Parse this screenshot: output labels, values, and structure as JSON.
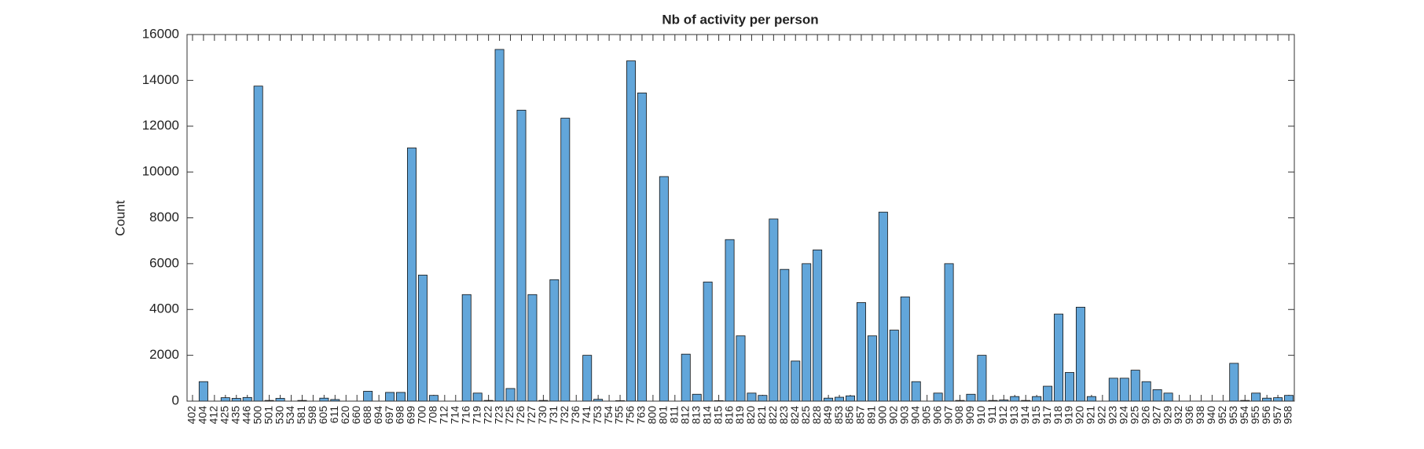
{
  "chart_data": {
    "type": "bar",
    "title": "Nb of activity per person",
    "ylabel": "Count",
    "categories": [
      "402",
      "404",
      "412",
      "425",
      "435",
      "446",
      "500",
      "501",
      "530",
      "534",
      "581",
      "598",
      "605",
      "611",
      "620",
      "660",
      "688",
      "694",
      "697",
      "698",
      "699",
      "700",
      "708",
      "712",
      "714",
      "716",
      "719",
      "722",
      "723",
      "725",
      "726",
      "727",
      "730",
      "731",
      "732",
      "736",
      "741",
      "753",
      "754",
      "755",
      "756",
      "763",
      "800",
      "801",
      "811",
      "812",
      "813",
      "814",
      "815",
      "816",
      "819",
      "820",
      "821",
      "822",
      "823",
      "824",
      "825",
      "828",
      "849",
      "853",
      "856",
      "857",
      "891",
      "900",
      "902",
      "903",
      "904",
      "905",
      "906",
      "907",
      "908",
      "909",
      "910",
      "911",
      "912",
      "913",
      "914",
      "915",
      "917",
      "918",
      "919",
      "920",
      "921",
      "922",
      "923",
      "924",
      "925",
      "926",
      "927",
      "929",
      "932",
      "936",
      "938",
      "940",
      "952",
      "953",
      "954",
      "955",
      "956",
      "957",
      "958"
    ],
    "values": [
      0,
      850,
      0,
      150,
      120,
      160,
      13750,
      30,
      120,
      0,
      30,
      0,
      130,
      70,
      0,
      0,
      430,
      0,
      380,
      380,
      11050,
      5500,
      250,
      0,
      0,
      4650,
      350,
      30,
      15350,
      550,
      12700,
      4650,
      30,
      5300,
      12350,
      0,
      2000,
      80,
      0,
      20,
      14850,
      13450,
      0,
      9800,
      0,
      2050,
      300,
      5200,
      20,
      7050,
      2850,
      350,
      250,
      7950,
      5750,
      1750,
      6000,
      6600,
      130,
      170,
      230,
      4300,
      2850,
      8250,
      3100,
      4550,
      850,
      0,
      350,
      6000,
      30,
      300,
      2000,
      30,
      50,
      200,
      30,
      200,
      650,
      3800,
      1250,
      4100,
      200,
      0,
      1000,
      1000,
      1350,
      850,
      500,
      350,
      0,
      0,
      0,
      0,
      0,
      1650,
      30,
      350,
      130,
      150,
      250
    ],
    "color": "#62a6da",
    "ylim": [
      0,
      16000
    ],
    "yticks": [
      0,
      2000,
      4000,
      6000,
      8000,
      10000,
      12000,
      14000,
      16000
    ]
  }
}
